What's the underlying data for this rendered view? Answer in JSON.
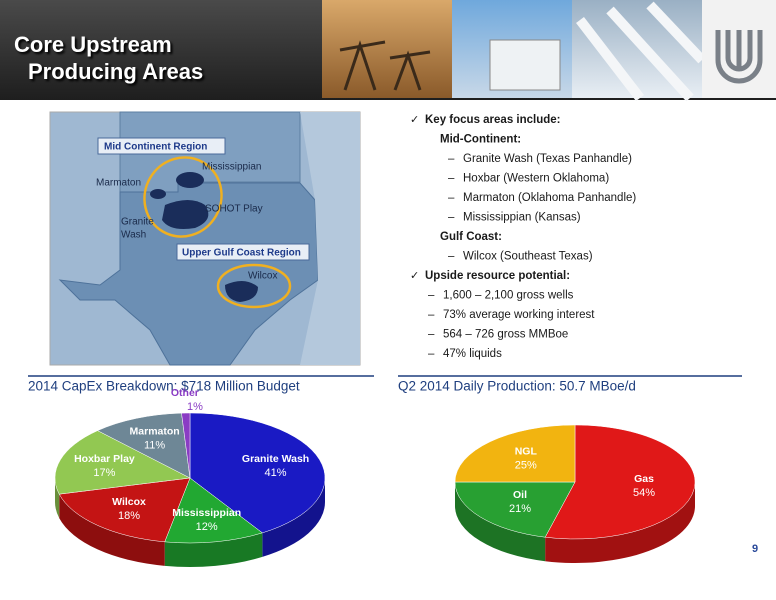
{
  "header": {
    "title_lines": [
      "Core Upstream",
      "Producing Areas"
    ]
  },
  "map": {
    "labels": [
      "Mid Continent Region",
      "Mississippian",
      "Marmaton",
      "Granite",
      "Wash",
      "SOHOT Play",
      "Upper Gulf Coast Region",
      "Wilcox"
    ]
  },
  "bullets": [
    {
      "text": "Key focus areas include:",
      "items": [
        {
          "text": "Mid-Continent:",
          "items": [
            {
              "text": "Granite Wash (Texas Panhandle)"
            },
            {
              "text": "Hoxbar (Western Oklahoma)"
            },
            {
              "text": "Marmaton (Oklahoma Panhandle)"
            },
            {
              "text": "Mississippian (Kansas)"
            }
          ]
        },
        {
          "text": "Gulf Coast:",
          "items": [
            {
              "text": "Wilcox (Southeast Texas)"
            }
          ]
        }
      ]
    },
    {
      "text": "Upside resource potential:",
      "items": [
        {
          "text": "1,600 – 2,100 gross wells"
        },
        {
          "text": "73% average working interest"
        },
        {
          "text": "564 – 726 gross MMBoe"
        },
        {
          "text": "47% liquids"
        }
      ]
    }
  ],
  "page_number": "9",
  "chart_data": [
    {
      "type": "pie",
      "title": "2014 CapEx Breakdown: $718 Million Budget",
      "categories": [
        "Granite Wash",
        "Mississippian",
        "Wilcox",
        "Hoxbar Play",
        "Marmaton",
        "Other"
      ],
      "values": [
        41,
        12,
        18,
        17,
        11,
        1
      ],
      "value_labels": [
        "41%",
        "12%",
        "18%",
        "17%",
        "11%",
        "1%"
      ],
      "colors": [
        "#1a1ac4",
        "#22a832",
        "#c41414",
        "#92c852",
        "#6e8796",
        "#8a3cc4"
      ]
    },
    {
      "type": "pie",
      "title": "Q2 2014 Daily Production: 50.7 MBoe/d",
      "categories": [
        "Gas",
        "Oil",
        "NGL"
      ],
      "values": [
        54,
        21,
        25
      ],
      "value_labels": [
        "54%",
        "21%",
        "25%"
      ],
      "colors": [
        "#e01818",
        "#28a032",
        "#f2b410"
      ]
    }
  ]
}
